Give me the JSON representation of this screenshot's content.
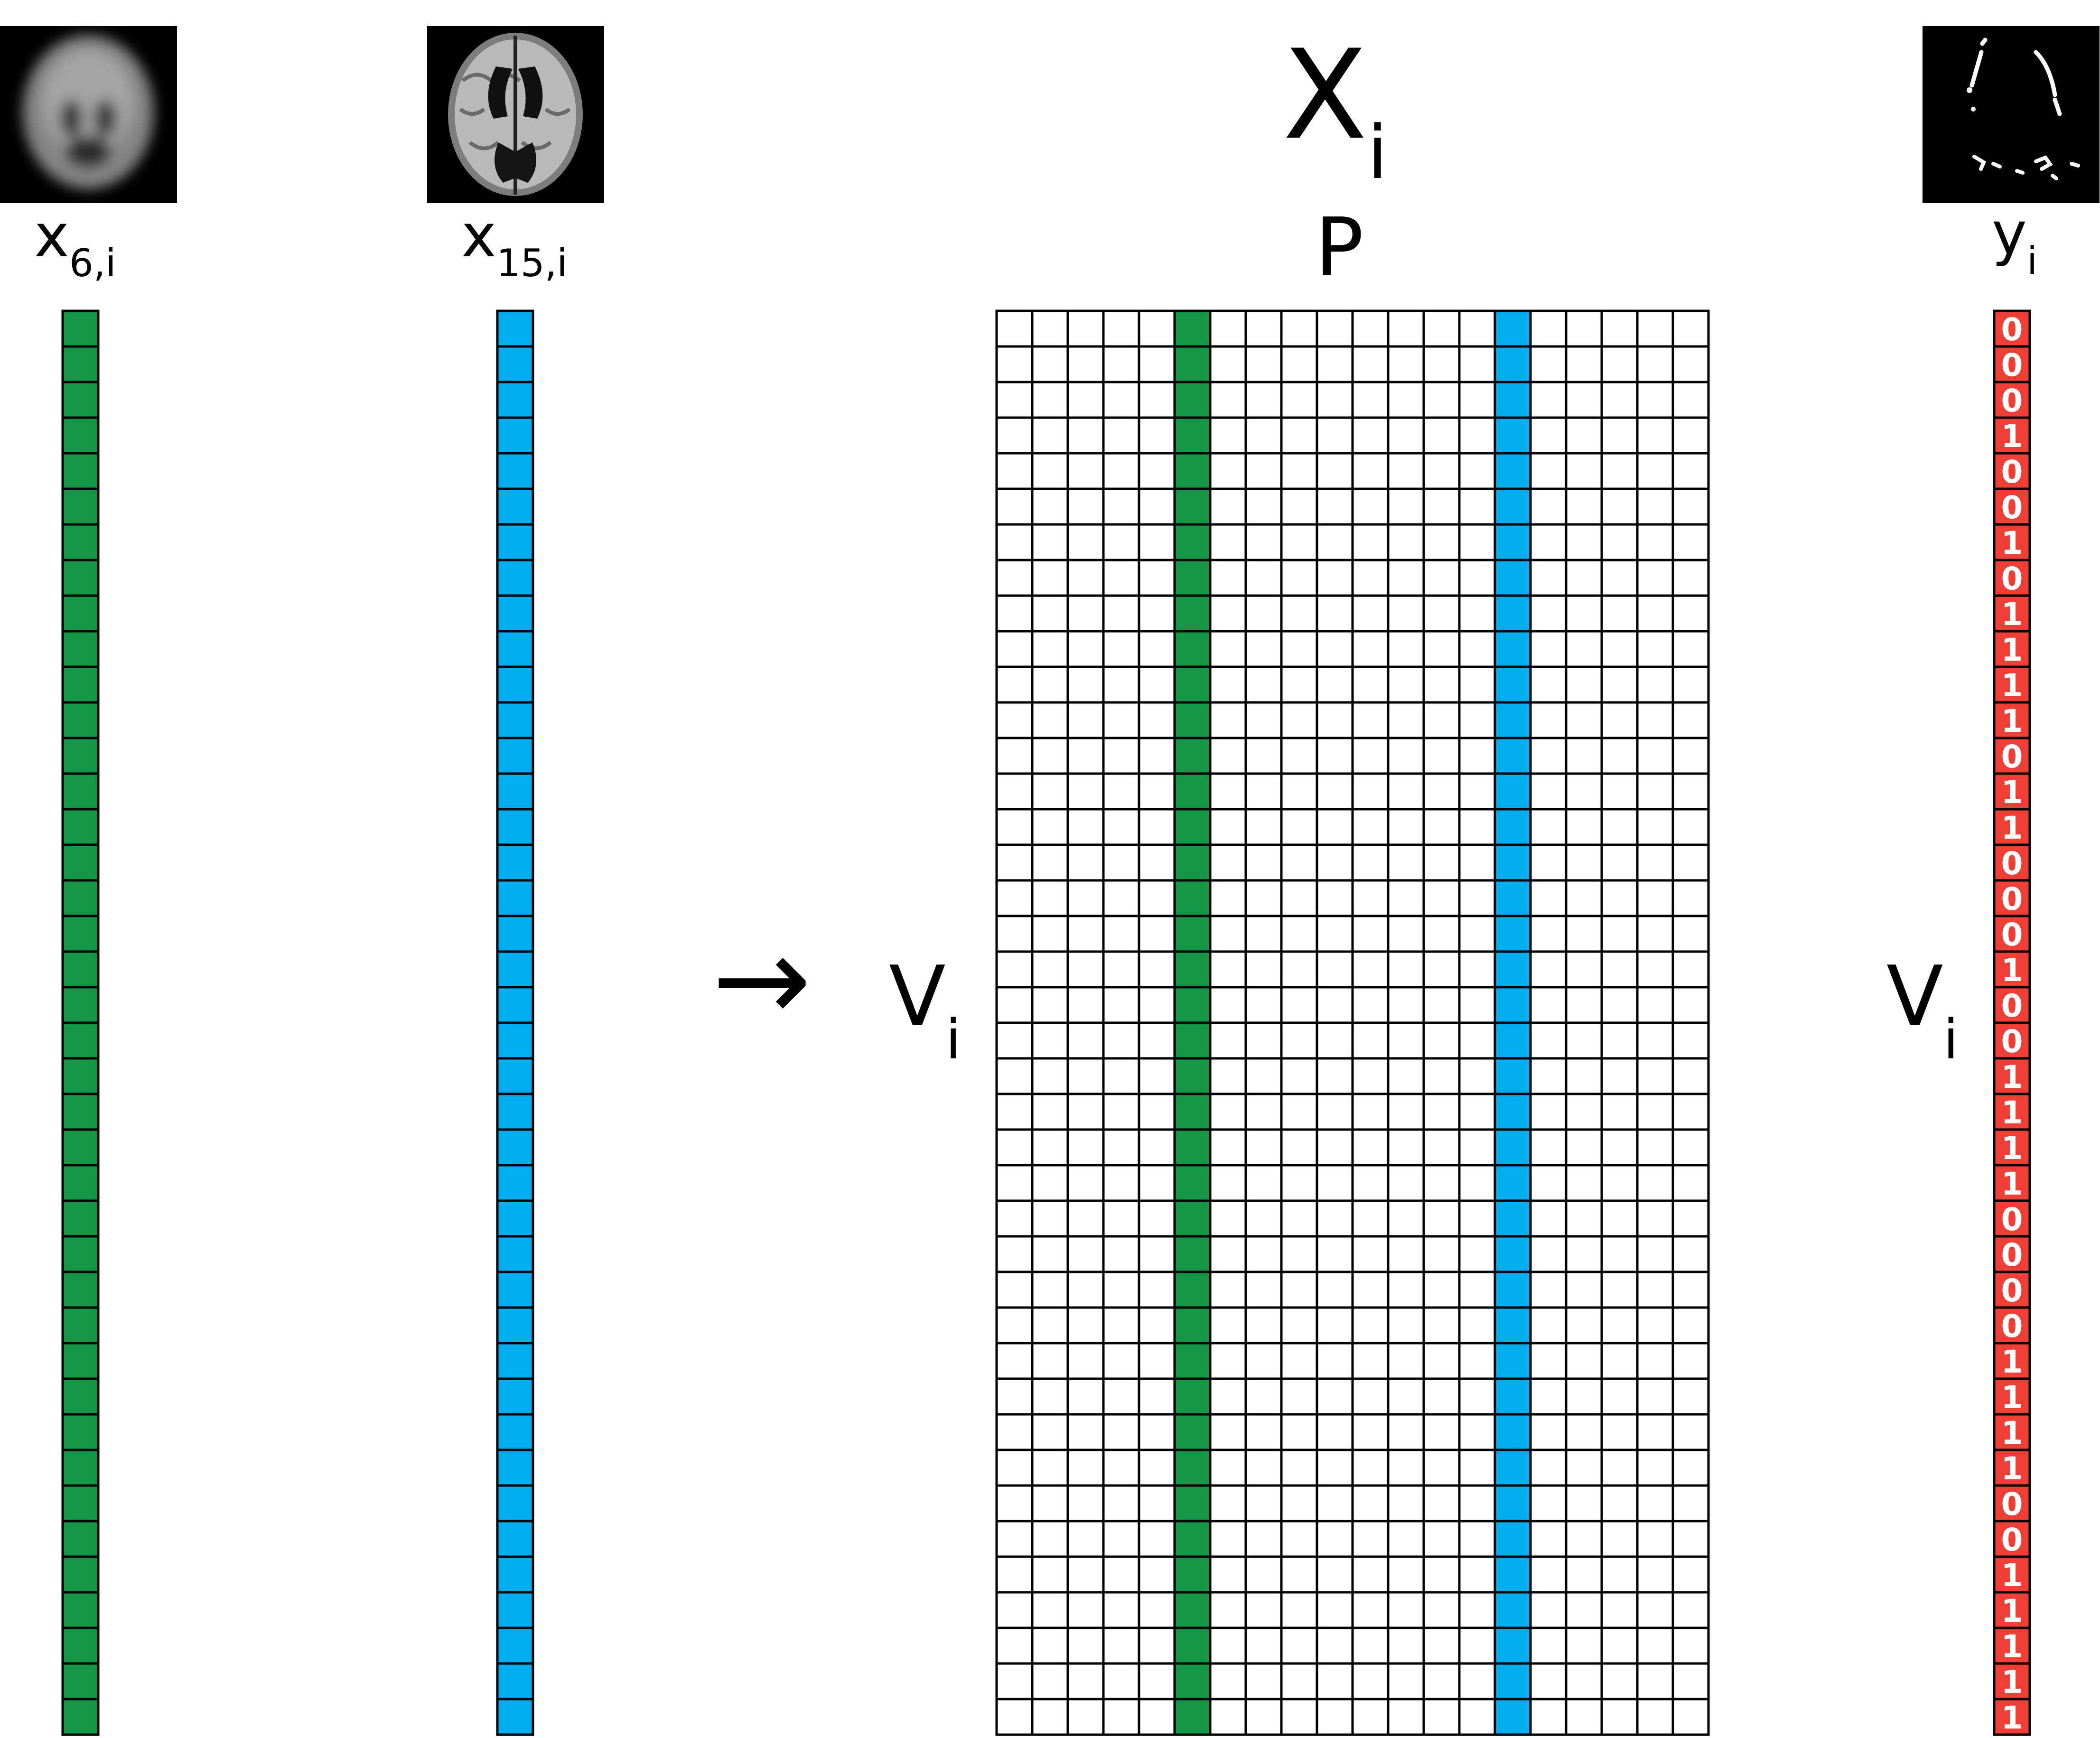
{
  "title": {
    "symbol": "X",
    "subscript": "i"
  },
  "columns_label": "P",
  "rows_label": {
    "symbol": "V",
    "subscript": "i"
  },
  "rows_label_right": {
    "symbol": "V",
    "subscript": "i"
  },
  "arrow": "→",
  "vectors": [
    {
      "symbol": "x",
      "subscript": "6,i",
      "image_icon": "blurred-brain-scan-icon",
      "color": "#149647"
    },
    {
      "symbol": "x",
      "subscript": "15,i",
      "image_icon": "brain-mri-scan-icon",
      "color": "#00aeef"
    }
  ],
  "output": {
    "symbol": "y",
    "subscript": "i",
    "image_icon": "binary-lesion-mask-icon",
    "color": "#ee3e35"
  },
  "matrix": {
    "rows": 40,
    "columns": 20,
    "highlighted_columns": [
      {
        "index": 5,
        "color": "#149647"
      },
      {
        "index": 14,
        "color": "#00aeef"
      }
    ]
  },
  "y_values": [
    0,
    0,
    0,
    1,
    0,
    0,
    1,
    0,
    1,
    1,
    1,
    1,
    0,
    1,
    1,
    0,
    0,
    0,
    1,
    0,
    0,
    1,
    1,
    1,
    1,
    0,
    0,
    0,
    0,
    1,
    1,
    1,
    1,
    0,
    0,
    1,
    1,
    1,
    1,
    1
  ]
}
